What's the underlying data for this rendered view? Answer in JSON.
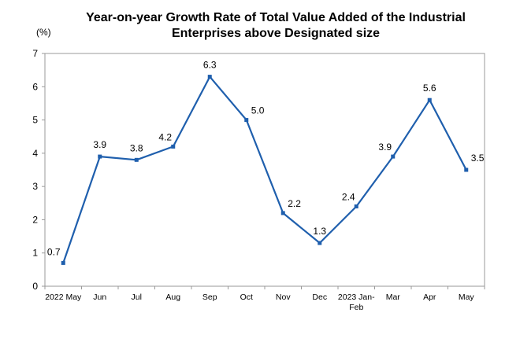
{
  "chart_data": {
    "type": "line",
    "title_line1": "Year-on-year Growth Rate of Total Value Added of the Industrial",
    "title_line2": "Enterprises above Designated size",
    "ylabel": "(%)",
    "xlabel": "",
    "ylim": [
      0,
      7
    ],
    "yticks": [
      "0",
      "1",
      "2",
      "3",
      "4",
      "5",
      "6",
      "7"
    ],
    "grid": false,
    "legend": "none",
    "categories": [
      [
        "2022 May"
      ],
      [
        "Jun"
      ],
      [
        "Jul"
      ],
      [
        "Aug"
      ],
      [
        "Sep"
      ],
      [
        "Oct"
      ],
      [
        "Nov"
      ],
      [
        "Dec"
      ],
      [
        "2023 Jan-",
        "Feb"
      ],
      [
        "Mar"
      ],
      [
        "Apr"
      ],
      [
        "May"
      ]
    ],
    "series": [
      {
        "values": [
          0.7,
          3.9,
          3.8,
          4.2,
          6.3,
          5.0,
          2.2,
          1.3,
          2.4,
          3.9,
          5.6,
          3.5
        ],
        "value_labels": [
          "0.7",
          "3.9",
          "3.8",
          "4.2",
          "6.3",
          "5.0",
          "2.2",
          "1.3",
          "2.4",
          "3.9",
          "5.6",
          "3.5"
        ],
        "color": "#1f5fad"
      }
    ],
    "axis_color": "#999999"
  }
}
